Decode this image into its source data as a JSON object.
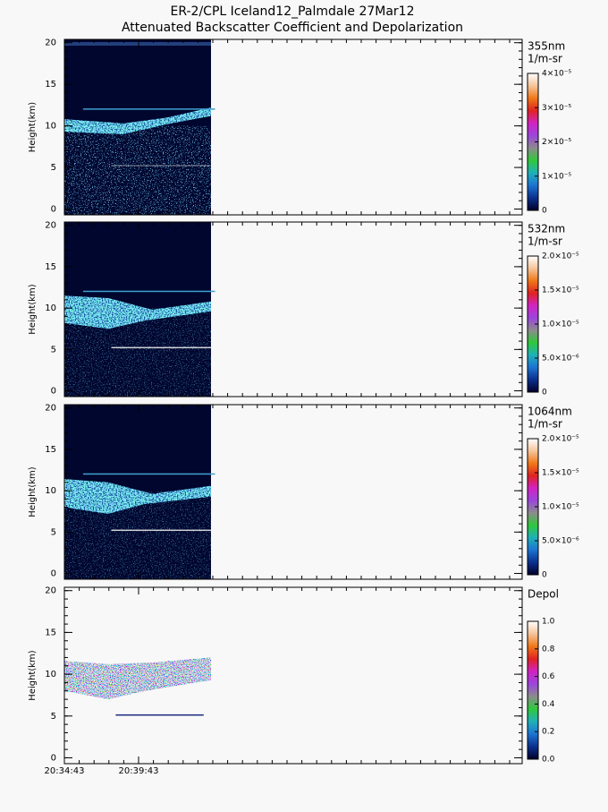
{
  "title": [
    "ER-2/CPL Iceland12_Palmdale 27Mar12",
    "Attenuated Backscatter Coefficient and Depolarization"
  ],
  "colormap": [
    "#00002a",
    "#0b2f8c",
    "#1d73d2",
    "#1fb0b8",
    "#2fc83a",
    "#8c8c8c",
    "#9a45dc",
    "#d223c2",
    "#e02222",
    "#f07818",
    "#f6c49a",
    "#ffffff"
  ],
  "xticks": [
    "20:34:43",
    "20:39:43"
  ],
  "chart_data": [
    {
      "type": "heatmap",
      "ylabel": "Height(km)",
      "ylim": [
        -0.7,
        20.4
      ],
      "yticks": [
        0,
        5,
        10,
        15,
        20
      ],
      "colorbar": {
        "title": [
          "355nm",
          "1/m-sr"
        ],
        "lim": [
          0,
          4e-05
        ],
        "ticks": [
          0,
          {
            "value": 1e-05,
            "label": "1×10⁻⁵"
          },
          {
            "value": 2e-05,
            "label": "2×10⁻⁵"
          },
          {
            "value": 3e-05,
            "label": "3×10⁻⁵"
          },
          {
            "value": 4e-05,
            "label": "4×10⁻⁵"
          }
        ]
      }
    },
    {
      "type": "heatmap",
      "ylabel": "Height(km)",
      "ylim": [
        -0.7,
        20.4
      ],
      "yticks": [
        0,
        5,
        10,
        15,
        20
      ],
      "colorbar": {
        "title": [
          "532nm",
          "1/m-sr"
        ],
        "lim": [
          0,
          2e-05
        ],
        "ticks": [
          0,
          {
            "value": 5e-06,
            "label": "5.0×10⁻⁶"
          },
          {
            "value": 1e-05,
            "label": "1.0×10⁻⁵"
          },
          {
            "value": 1.5e-05,
            "label": "1.5×10⁻⁵"
          },
          {
            "value": 2e-05,
            "label": "2.0×10⁻⁵"
          }
        ]
      }
    },
    {
      "type": "heatmap",
      "ylabel": "Height(km)",
      "ylim": [
        -0.7,
        20.4
      ],
      "yticks": [
        0,
        5,
        10,
        15,
        20
      ],
      "colorbar": {
        "title": [
          "1064nm",
          "1/m-sr"
        ],
        "lim": [
          0,
          2e-05
        ],
        "ticks": [
          0,
          {
            "value": 5e-06,
            "label": "5.0×10⁻⁶"
          },
          {
            "value": 1e-05,
            "label": "1.0×10⁻⁵"
          },
          {
            "value": 1.5e-05,
            "label": "1.5×10⁻⁵"
          },
          {
            "value": 2e-05,
            "label": "2.0×10⁻⁵"
          }
        ]
      }
    },
    {
      "type": "depol",
      "ylabel": "Height(km)",
      "ylim": [
        -0.7,
        20.4
      ],
      "yticks": [
        0,
        5,
        10,
        15,
        20
      ],
      "colorbar": {
        "title": [
          "Depol"
        ],
        "lim": [
          0,
          1
        ],
        "ticks": [
          {
            "value": 0,
            "label": "0.0"
          },
          0.2,
          0.4,
          0.6,
          0.8,
          {
            "value": 1,
            "label": "1.0"
          }
        ]
      }
    }
  ]
}
